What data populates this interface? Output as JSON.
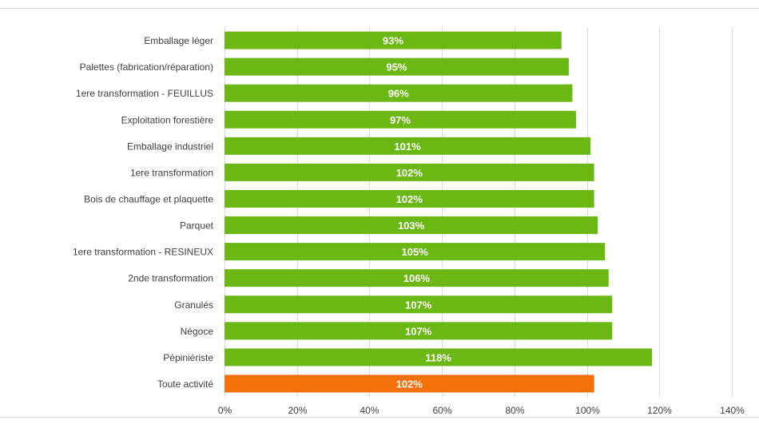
{
  "chart_data": {
    "type": "bar",
    "orientation": "horizontal",
    "categories": [
      "Emballage léger",
      "Palettes (fabrication/réparation)",
      "1ere transformation - FEUILLUS",
      "Exploitation forestière",
      "Emballage industriel",
      "1ere transformation",
      "Bois de chauffage et plaquette",
      "Parquet",
      "1ere transformation - RESINEUX",
      "2nde transformation",
      "Granulés",
      "Négoce",
      "Pépiniériste",
      "Toute activité"
    ],
    "values": [
      93,
      95,
      96,
      97,
      101,
      102,
      102,
      103,
      105,
      106,
      107,
      107,
      118,
      102
    ],
    "data_labels": [
      "93%",
      "95%",
      "96%",
      "97%",
      "101%",
      "102%",
      "102%",
      "103%",
      "105%",
      "106%",
      "107%",
      "107%",
      "118%",
      "102%"
    ],
    "bar_colors": [
      "#6bb814",
      "#6bb814",
      "#6bb814",
      "#6bb814",
      "#6bb814",
      "#6bb814",
      "#6bb814",
      "#6bb814",
      "#6bb814",
      "#6bb814",
      "#6bb814",
      "#6bb814",
      "#6bb814",
      "#f5700a"
    ],
    "x_ticks": [
      0,
      20,
      40,
      60,
      80,
      100,
      120,
      140
    ],
    "x_tick_labels": [
      "0%",
      "20%",
      "40%",
      "60%",
      "80%",
      "100%",
      "120%",
      "140%"
    ],
    "xlim": [
      0,
      140
    ],
    "grid": true,
    "title": "",
    "xlabel": "",
    "ylabel": "",
    "colors": {
      "bar": "#6bb814",
      "highlight": "#f5700a",
      "grid": "#d9d9d9",
      "text": "#404040",
      "data_label": "#ffffff"
    }
  }
}
